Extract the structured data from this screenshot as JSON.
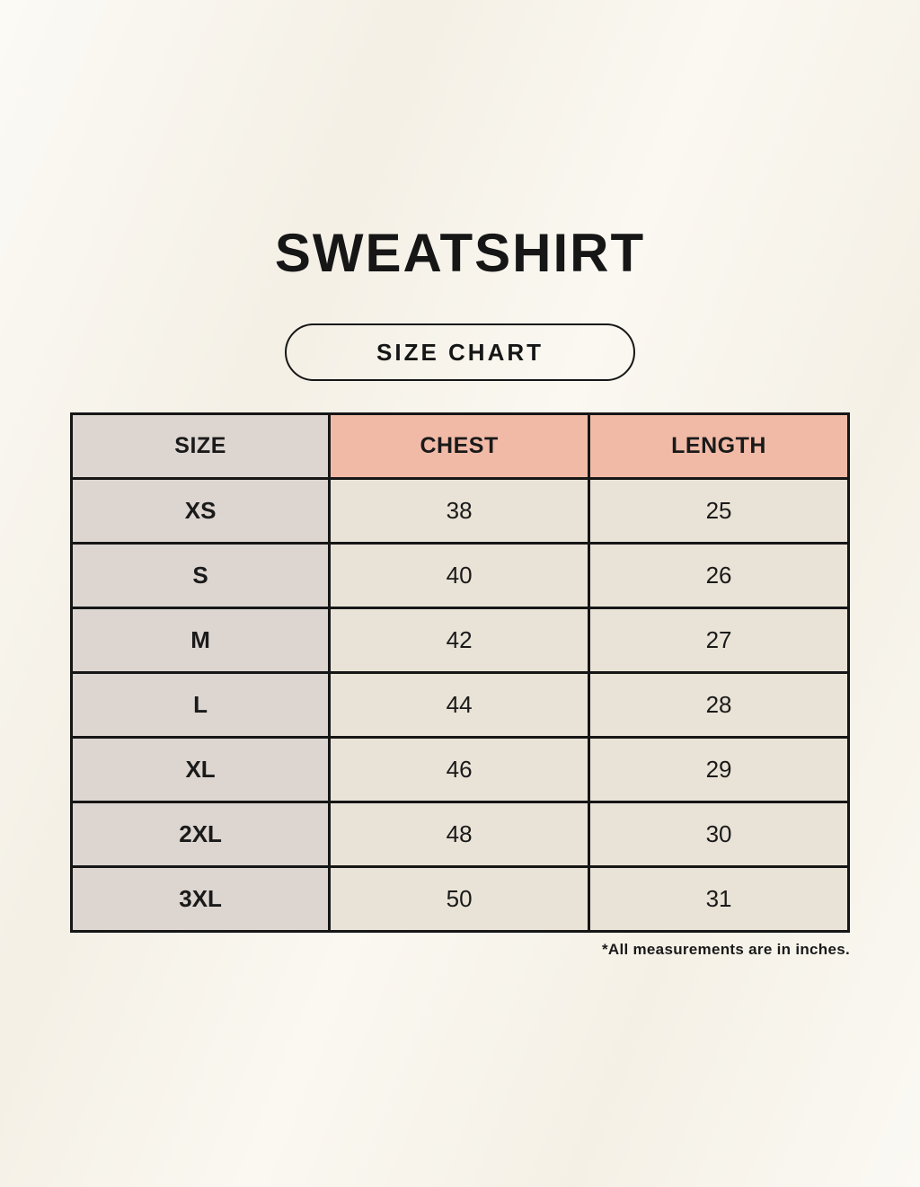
{
  "header": {
    "title": "SWEATSHIRT",
    "badge_label": "SIZE CHART"
  },
  "table": {
    "columns": [
      "SIZE",
      "CHEST",
      "LENGTH"
    ],
    "rows": [
      {
        "size": "XS",
        "chest": "38",
        "length": "25"
      },
      {
        "size": "S",
        "chest": "40",
        "length": "26"
      },
      {
        "size": "M",
        "chest": "42",
        "length": "27"
      },
      {
        "size": "L",
        "chest": "44",
        "length": "28"
      },
      {
        "size": "XL",
        "chest": "46",
        "length": "29"
      },
      {
        "size": "2XL",
        "chest": "48",
        "length": "30"
      },
      {
        "size": "3XL",
        "chest": "50",
        "length": "31"
      }
    ]
  },
  "footnote": "*All measurements are in inches.",
  "colors": {
    "background": "#f8f4ea",
    "size_column_bg": "#dcd5d0",
    "measure_header_bg": "#f1baa7",
    "value_cell_bg": "#e9e2d6",
    "border": "#161616",
    "text": "#1a1a1a"
  }
}
